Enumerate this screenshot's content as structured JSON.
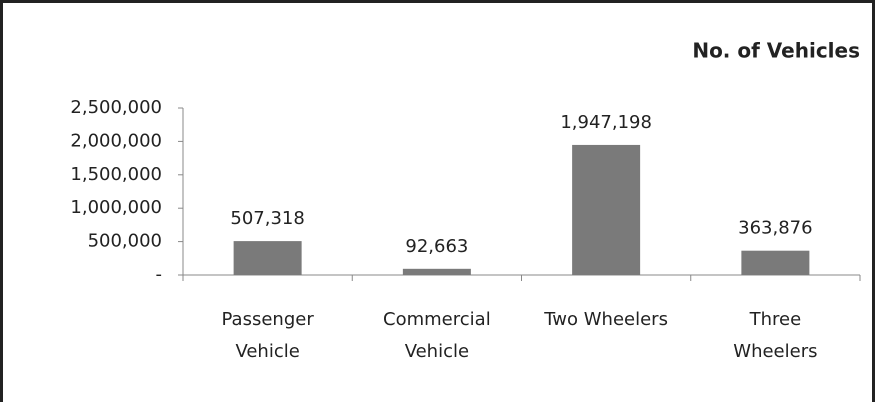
{
  "chart_data": {
    "type": "bar",
    "title": "No. of Vehicles",
    "categories": [
      "Passenger Vehicle",
      "Commercial Vehicle",
      "Two Wheelers",
      "Three Wheelers"
    ],
    "values": [
      507318,
      92663,
      1947198,
      363876
    ],
    "value_labels": [
      "507,318",
      "92,663",
      "1,947,198",
      "363,876"
    ],
    "color": "#7a7a7a",
    "ylim": [
      0,
      2500000
    ],
    "yticks": [
      {
        "value": 0,
        "label": "-"
      },
      {
        "value": 500000,
        "label": "500,000"
      },
      {
        "value": 1000000,
        "label": "1,000,000"
      },
      {
        "value": 1500000,
        "label": "1,500,000"
      },
      {
        "value": 2000000,
        "label": "2,000,000"
      },
      {
        "value": 2500000,
        "label": "2,500,000"
      }
    ]
  }
}
